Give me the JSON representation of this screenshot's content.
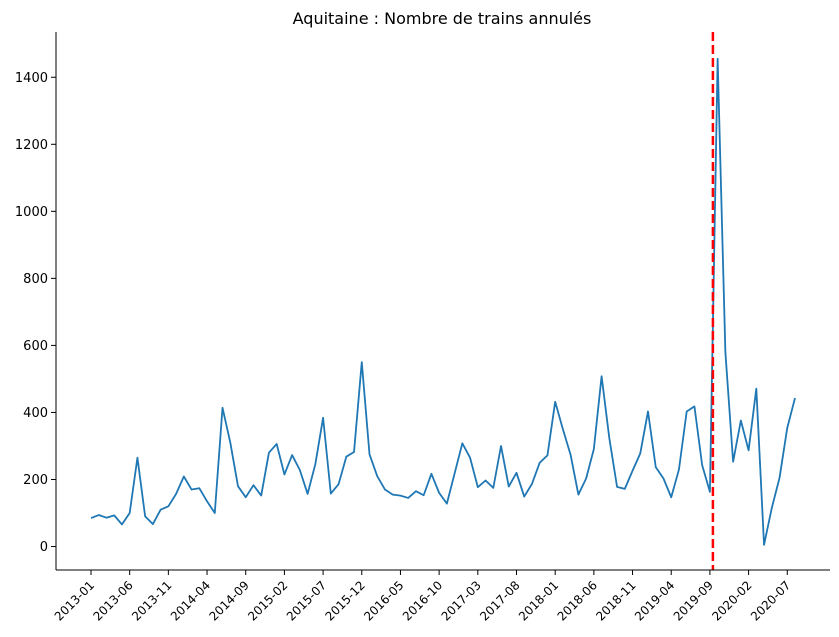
{
  "chart_data": {
    "type": "line",
    "title": "Aquitaine : Nombre de trains annulés",
    "xlabel": "",
    "ylabel": "",
    "ylim": [
      -70,
      1535
    ],
    "yticks": [
      0,
      200,
      400,
      600,
      800,
      1000,
      1200,
      1400
    ],
    "xtick_labels": [
      "2013-01",
      "2013-06",
      "2013-11",
      "2014-04",
      "2014-09",
      "2015-02",
      "2015-07",
      "2015-12",
      "2016-05",
      "2016-10",
      "2017-03",
      "2017-08",
      "2018-01",
      "2018-06",
      "2018-11",
      "2019-04",
      "2019-09",
      "2020-02",
      "2020-07"
    ],
    "x": [
      "2013-01",
      "2013-02",
      "2013-03",
      "2013-04",
      "2013-05",
      "2013-06",
      "2013-07",
      "2013-08",
      "2013-09",
      "2013-10",
      "2013-11",
      "2013-12",
      "2014-01",
      "2014-02",
      "2014-03",
      "2014-04",
      "2014-05",
      "2014-06",
      "2014-07",
      "2014-08",
      "2014-09",
      "2014-10",
      "2014-11",
      "2014-12",
      "2015-01",
      "2015-02",
      "2015-03",
      "2015-04",
      "2015-05",
      "2015-06",
      "2015-07",
      "2015-08",
      "2015-09",
      "2015-10",
      "2015-11",
      "2015-12",
      "2016-01",
      "2016-02",
      "2016-03",
      "2016-04",
      "2016-05",
      "2016-06",
      "2016-07",
      "2016-08",
      "2016-09",
      "2016-10",
      "2016-11",
      "2016-12",
      "2017-01",
      "2017-02",
      "2017-03",
      "2017-04",
      "2017-05",
      "2017-06",
      "2017-07",
      "2017-08",
      "2017-09",
      "2017-10",
      "2017-11",
      "2017-12",
      "2018-01",
      "2018-02",
      "2018-03",
      "2018-04",
      "2018-05",
      "2018-06",
      "2018-07",
      "2018-08",
      "2018-09",
      "2018-10",
      "2018-11",
      "2018-12",
      "2019-01",
      "2019-02",
      "2019-03",
      "2019-04",
      "2019-05",
      "2019-06",
      "2019-07",
      "2019-08",
      "2019-09",
      "2019-10",
      "2019-11",
      "2019-12",
      "2020-01",
      "2020-02",
      "2020-03",
      "2020-04",
      "2020-05",
      "2020-06",
      "2020-07",
      "2020-08"
    ],
    "series": [
      {
        "color": "#1f77b4",
        "values": [
          85,
          94,
          86,
          93,
          66,
          100,
          265,
          90,
          67,
          110,
          120,
          157,
          209,
          170,
          174,
          135,
          100,
          414,
          311,
          180,
          147,
          183,
          152,
          280,
          306,
          215,
          273,
          228,
          157,
          246,
          384,
          158,
          186,
          268,
          282,
          550,
          275,
          210,
          170,
          155,
          152,
          145,
          165,
          153,
          217,
          160,
          128,
          218,
          308,
          265,
          177,
          197,
          175,
          300,
          179,
          220,
          149,
          187,
          250,
          272,
          432,
          350,
          273,
          155,
          203,
          291,
          508,
          323,
          178,
          172,
          226,
          278,
          403,
          237,
          203,
          147,
          230,
          403,
          418,
          243,
          163,
          1455,
          580,
          253,
          376,
          287,
          471,
          5,
          115,
          205,
          354,
          443
        ]
      }
    ],
    "vline": {
      "x": "2019-09",
      "color": "#ff0000",
      "style": "dashed"
    },
    "grid": false,
    "legend": "none"
  }
}
